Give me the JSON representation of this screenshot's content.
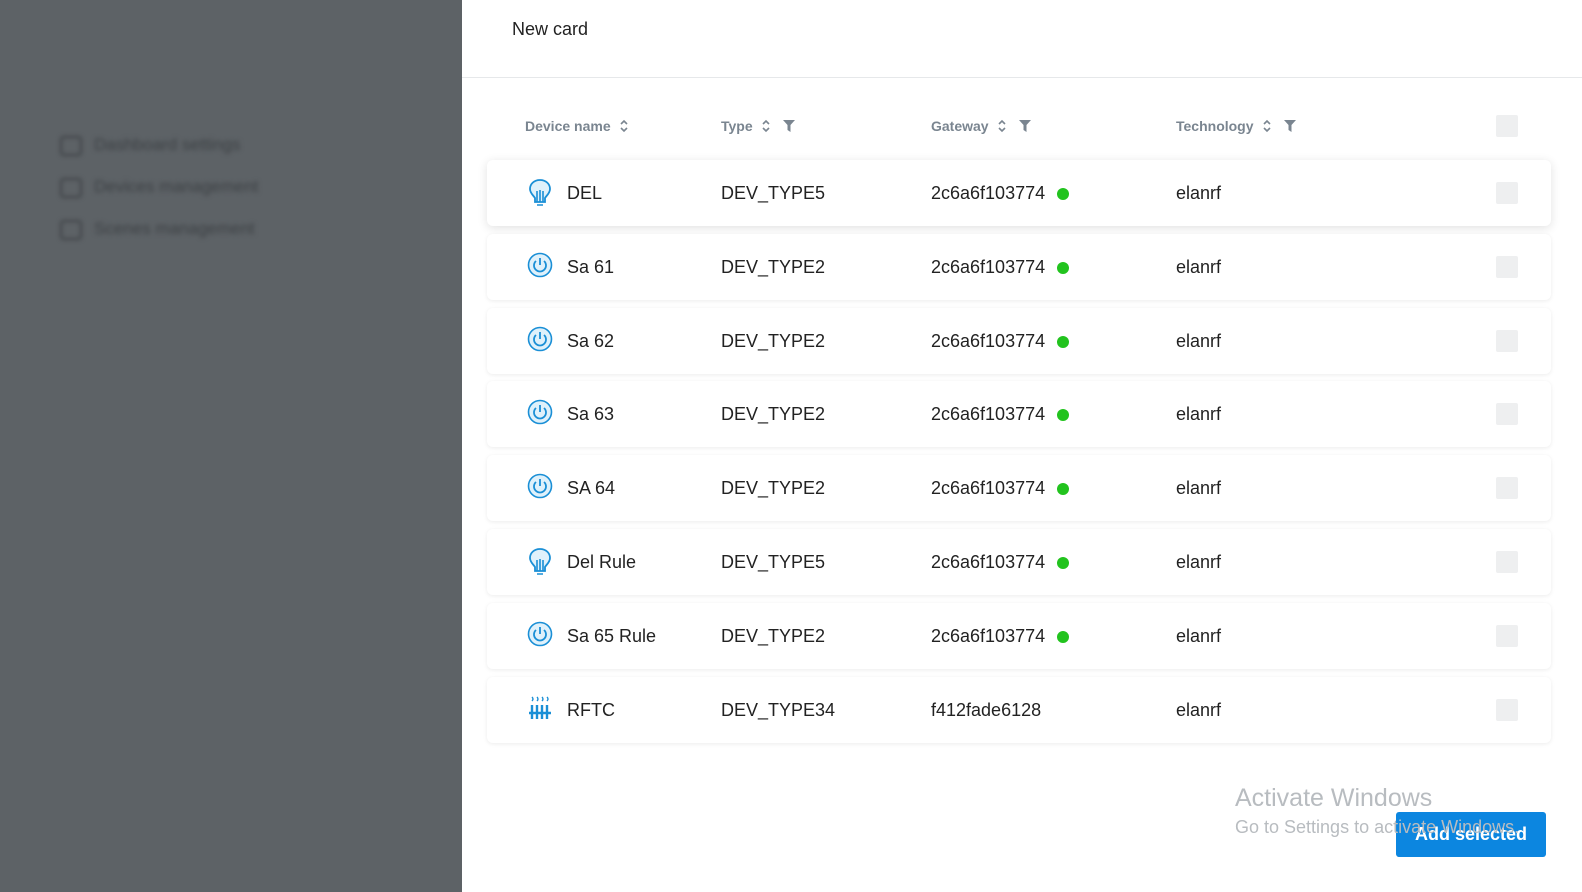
{
  "sidebar": {
    "items": [
      "Dashboard settings",
      "Devices management",
      "Scenes management"
    ]
  },
  "header": {
    "title": "New card"
  },
  "table": {
    "columns": [
      {
        "label": "Device name",
        "filter": false
      },
      {
        "label": "Type",
        "filter": true
      },
      {
        "label": "Gateway",
        "filter": true
      },
      {
        "label": "Technology",
        "filter": true
      }
    ],
    "rows": [
      {
        "icon": "bulb",
        "name": "DEL",
        "type": "DEV_TYPE5",
        "gateway": "2c6a6f103774",
        "online": true,
        "technology": "elanrf"
      },
      {
        "icon": "power",
        "name": "Sa 61",
        "type": "DEV_TYPE2",
        "gateway": "2c6a6f103774",
        "online": true,
        "technology": "elanrf"
      },
      {
        "icon": "power",
        "name": "Sa 62",
        "type": "DEV_TYPE2",
        "gateway": "2c6a6f103774",
        "online": true,
        "technology": "elanrf"
      },
      {
        "icon": "power",
        "name": "Sa 63",
        "type": "DEV_TYPE2",
        "gateway": "2c6a6f103774",
        "online": true,
        "technology": "elanrf"
      },
      {
        "icon": "power",
        "name": "SA 64",
        "type": "DEV_TYPE2",
        "gateway": "2c6a6f103774",
        "online": true,
        "technology": "elanrf"
      },
      {
        "icon": "bulb",
        "name": "Del Rule",
        "type": "DEV_TYPE5",
        "gateway": "2c6a6f103774",
        "online": true,
        "technology": "elanrf"
      },
      {
        "icon": "power",
        "name": "Sa 65 Rule",
        "type": "DEV_TYPE2",
        "gateway": "2c6a6f103774",
        "online": true,
        "technology": "elanrf"
      },
      {
        "icon": "heater",
        "name": "RFTC",
        "type": "DEV_TYPE34",
        "gateway": "f412fade6128",
        "online": false,
        "technology": "elanrf"
      }
    ]
  },
  "button": {
    "label": "Add selected"
  },
  "watermark": {
    "title": "Activate Windows",
    "subtitle": "Go to Settings to activate Windows."
  }
}
